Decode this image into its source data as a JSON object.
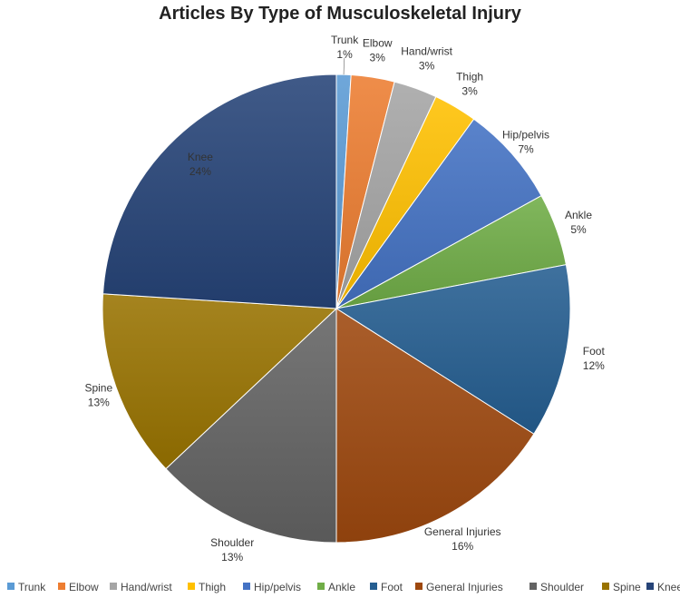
{
  "chart_data": {
    "type": "pie",
    "title": "Articles By Type of Musculoskeletal  Injury",
    "legend_position": "bottom",
    "start_angle_deg": 0,
    "direction": "clockwise",
    "slices": [
      {
        "label": "Trunk",
        "value": 1,
        "value_label": "1%",
        "color": "#5B9BD5"
      },
      {
        "label": "Elbow",
        "value": 3,
        "value_label": "3%",
        "color": "#ED7D31"
      },
      {
        "label": "Hand/wrist",
        "value": 3,
        "value_label": "3%",
        "color": "#A5A5A5"
      },
      {
        "label": "Thigh",
        "value": 3,
        "value_label": "3%",
        "color": "#FFC000"
      },
      {
        "label": "Hip/pelvis",
        "value": 7,
        "value_label": "7%",
        "color": "#4472C4"
      },
      {
        "label": "Ankle",
        "value": 5,
        "value_label": "5%",
        "color": "#70AD47"
      },
      {
        "label": "Foot",
        "value": 12,
        "value_label": "12%",
        "color": "#255E91"
      },
      {
        "label": "General Injuries",
        "value": 16,
        "value_label": "16%",
        "color": "#9E480E"
      },
      {
        "label": "Shoulder",
        "value": 13,
        "value_label": "13%",
        "color": "#636363"
      },
      {
        "label": "Spine",
        "value": 13,
        "value_label": "13%",
        "color": "#997300"
      },
      {
        "label": "Knee",
        "value": 24,
        "value_label": "24%",
        "color": "#264478"
      }
    ]
  }
}
